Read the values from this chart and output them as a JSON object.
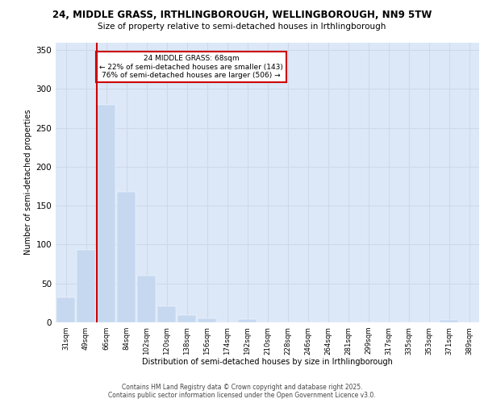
{
  "title_line1": "24, MIDDLE GRASS, IRTHLINGBOROUGH, WELLINGBOROUGH, NN9 5TW",
  "title_line2": "Size of property relative to semi-detached houses in Irthlingborough",
  "xlabel": "Distribution of semi-detached houses by size in Irthlingborough",
  "ylabel": "Number of semi-detached properties",
  "bar_labels": [
    "31sqm",
    "49sqm",
    "66sqm",
    "84sqm",
    "102sqm",
    "120sqm",
    "138sqm",
    "156sqm",
    "174sqm",
    "192sqm",
    "210sqm",
    "228sqm",
    "246sqm",
    "264sqm",
    "281sqm",
    "299sqm",
    "317sqm",
    "335sqm",
    "353sqm",
    "371sqm",
    "389sqm"
  ],
  "bar_values": [
    32,
    93,
    280,
    168,
    60,
    21,
    9,
    5,
    0,
    4,
    0,
    0,
    0,
    0,
    0,
    0,
    0,
    0,
    0,
    3,
    0
  ],
  "bar_color": "#c5d8f0",
  "bar_edgecolor": "#c5d8f0",
  "property_line_x": 2,
  "property_sqm": 68,
  "property_label": "24 MIDDLE GRASS: 68sqm",
  "pct_smaller": 22,
  "pct_smaller_n": 143,
  "pct_larger": 76,
  "pct_larger_n": 506,
  "annotation_box_color": "#ffffff",
  "annotation_box_edgecolor": "#cc0000",
  "vline_color": "#cc0000",
  "ylim": [
    0,
    360
  ],
  "yticks": [
    0,
    50,
    100,
    150,
    200,
    250,
    300,
    350
  ],
  "grid_color": "#d0d8e8",
  "bg_color": "#dce8f8",
  "footer_line1": "Contains HM Land Registry data © Crown copyright and database right 2025.",
  "footer_line2": "Contains public sector information licensed under the Open Government Licence v3.0."
}
